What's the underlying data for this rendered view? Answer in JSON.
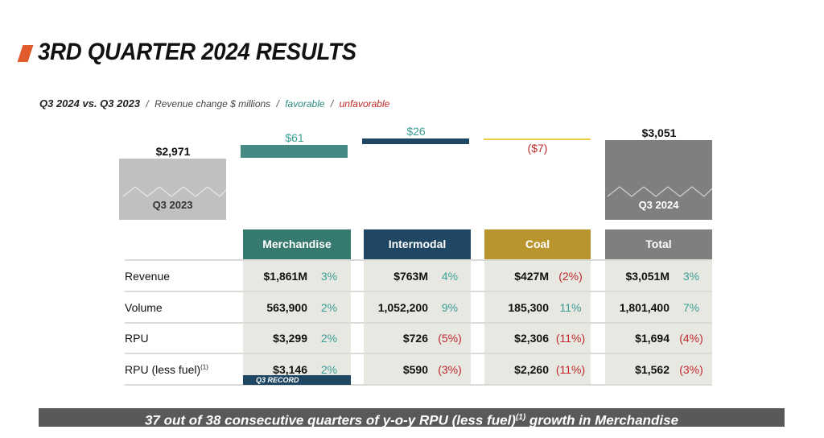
{
  "header": {
    "title": "3RD QUARTER 2024 RESULTS",
    "subtitle_lead": "Q3 2024 vs. Q3 2023",
    "subtitle_sep": "/",
    "subtitle_metric": "Revenue change $ millions",
    "favorable_label": "favorable",
    "unfavorable_label": "unfavorable"
  },
  "colors": {
    "accent": "#e05a2b",
    "merchandise": "#35796f",
    "intermodal": "#1f4763",
    "coal": "#b9952e",
    "coal_line": "#f1cd45",
    "total": "#7f7f7f",
    "q3_2023_box": "#c0c0c0",
    "favorable": "#3a9e94",
    "unfavorable": "#c0282a"
  },
  "bridge": {
    "start": {
      "label": "Q3 2023",
      "value": "$2,971"
    },
    "merchandise": {
      "value": "$61"
    },
    "intermodal": {
      "value": "$26"
    },
    "coal": {
      "value": "($7)"
    },
    "end": {
      "label": "Q3 2024",
      "value": "$3,051"
    }
  },
  "table": {
    "columns": [
      "Merchandise",
      "Intermodal",
      "Coal",
      "Total"
    ],
    "rows": [
      {
        "label": "Revenue",
        "cells": [
          {
            "value": "$1,861M",
            "pct": "3%",
            "fav": true
          },
          {
            "value": "$763M",
            "pct": "4%",
            "fav": true
          },
          {
            "value": "$427M",
            "pct": "(2%)",
            "fav": false
          },
          {
            "value": "$3,051M",
            "pct": "3%",
            "fav": true
          }
        ]
      },
      {
        "label": "Volume",
        "cells": [
          {
            "value": "563,900",
            "pct": "2%",
            "fav": true
          },
          {
            "value": "1,052,200",
            "pct": "9%",
            "fav": true
          },
          {
            "value": "185,300",
            "pct": "11%",
            "fav": true
          },
          {
            "value": "1,801,400",
            "pct": "7%",
            "fav": true
          }
        ]
      },
      {
        "label": "RPU",
        "cells": [
          {
            "value": "$3,299",
            "pct": "2%",
            "fav": true
          },
          {
            "value": "$726",
            "pct": "(5%)",
            "fav": false
          },
          {
            "value": "$2,306",
            "pct": "(11%)",
            "fav": false
          },
          {
            "value": "$1,694",
            "pct": "(4%)",
            "fav": false
          }
        ]
      },
      {
        "label": "RPU (less fuel)",
        "label_sup": "(1)",
        "cells": [
          {
            "value": "$3,146",
            "pct": "2%",
            "fav": true
          },
          {
            "value": "$590",
            "pct": "(3%)",
            "fav": false
          },
          {
            "value": "$2,260",
            "pct": "(11%)",
            "fav": false
          },
          {
            "value": "$1,562",
            "pct": "(3%)",
            "fav": false
          }
        ]
      }
    ],
    "record_badge": "Q3  RECORD"
  },
  "footer": {
    "text_before": "37 out of 38 consecutive quarters of y-o-y RPU (less fuel)",
    "sup": "(1)",
    "text_after": " growth in Merchandise"
  }
}
